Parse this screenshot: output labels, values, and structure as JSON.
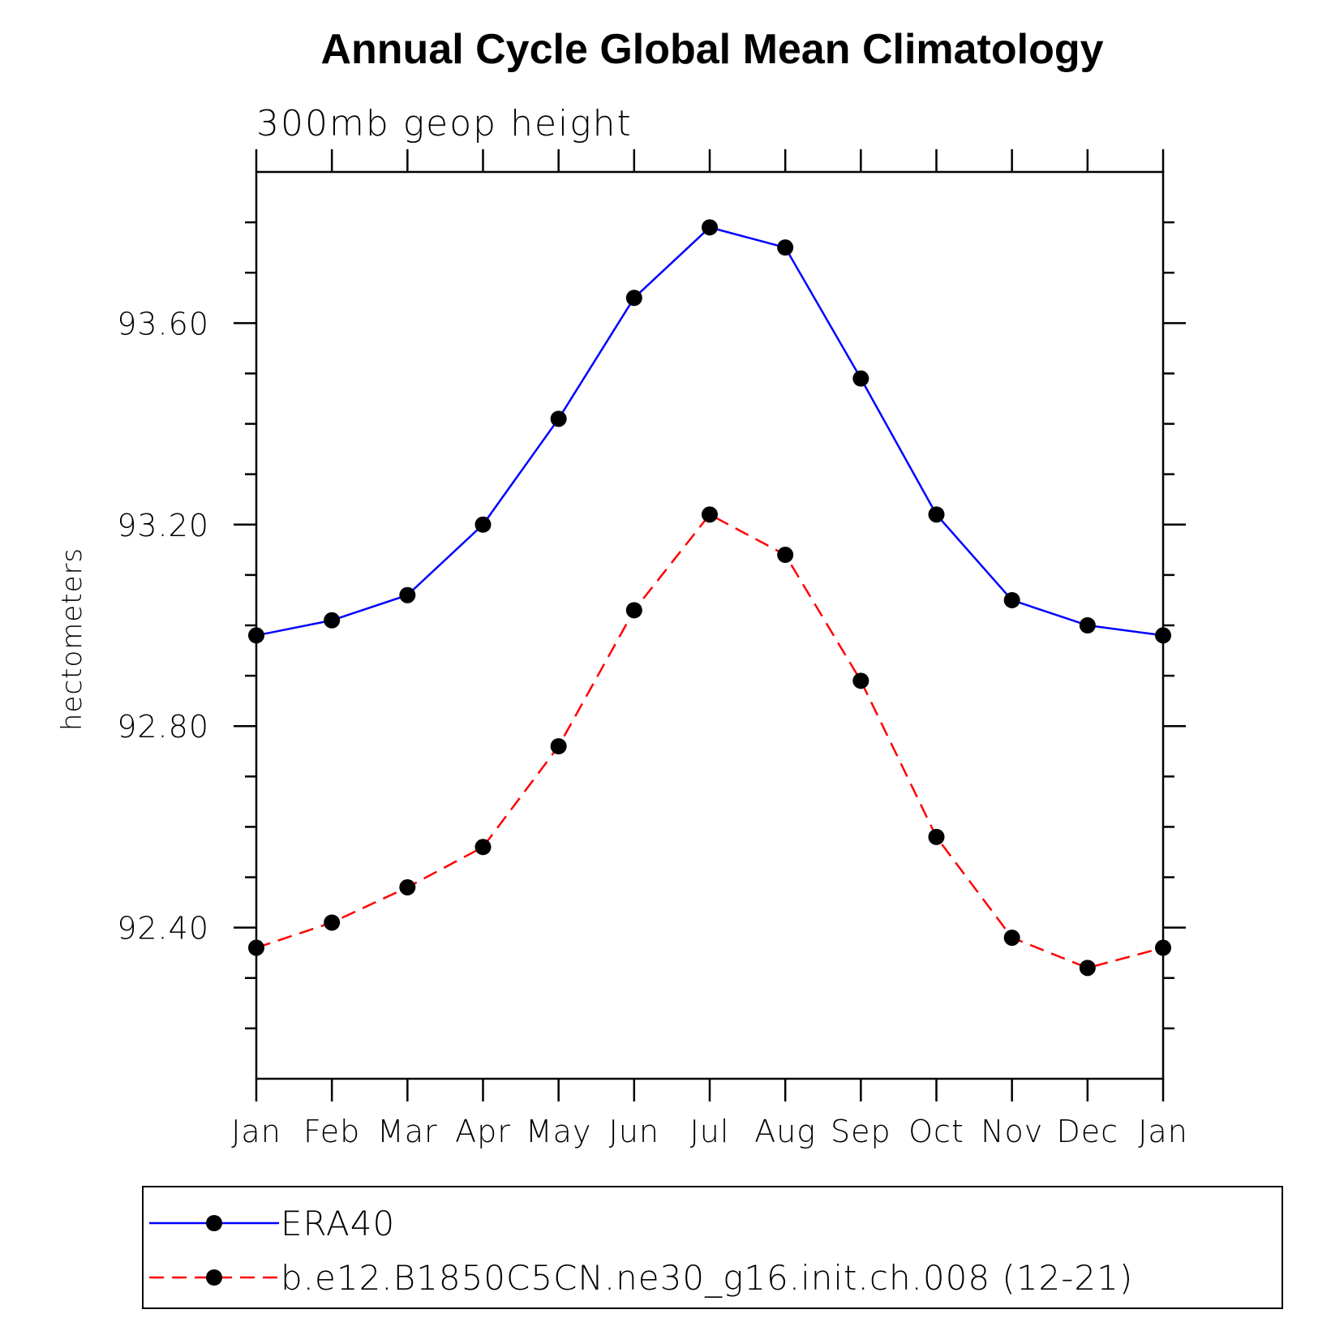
{
  "chart_data": {
    "type": "line",
    "title": "Annual Cycle Global Mean Climatology",
    "subtitle": "300mb geop height",
    "xlabel": "",
    "ylabel": "hectometers",
    "categories": [
      "Jan",
      "Feb",
      "Mar",
      "Apr",
      "May",
      "Jun",
      "Jul",
      "Aug",
      "Sep",
      "Oct",
      "Nov",
      "Dec",
      "Jan"
    ],
    "ylim": [
      92.1,
      93.9
    ],
    "yticks": [
      "93.60",
      "93.20",
      "92.80",
      "92.40"
    ],
    "ytick_values": [
      93.6,
      93.2,
      92.8,
      92.4
    ],
    "grid": false,
    "legend_position": "bottom",
    "series": [
      {
        "name": "ERA40",
        "color": "#0000ff",
        "line_style": "solid",
        "marker": "filled-circle",
        "values": [
          92.98,
          93.01,
          93.06,
          93.2,
          93.41,
          93.65,
          93.79,
          93.75,
          93.49,
          93.22,
          93.05,
          93.0,
          92.98
        ]
      },
      {
        "name": "b.e12.B1850C5CN.ne30_g16.init.ch.008 (12-21)",
        "color": "#ff0000",
        "line_style": "dashed",
        "marker": "filled-circle",
        "values": [
          92.36,
          92.41,
          92.48,
          92.56,
          92.76,
          93.03,
          93.22,
          93.14,
          92.89,
          92.58,
          92.38,
          92.32,
          92.36
        ]
      }
    ]
  }
}
